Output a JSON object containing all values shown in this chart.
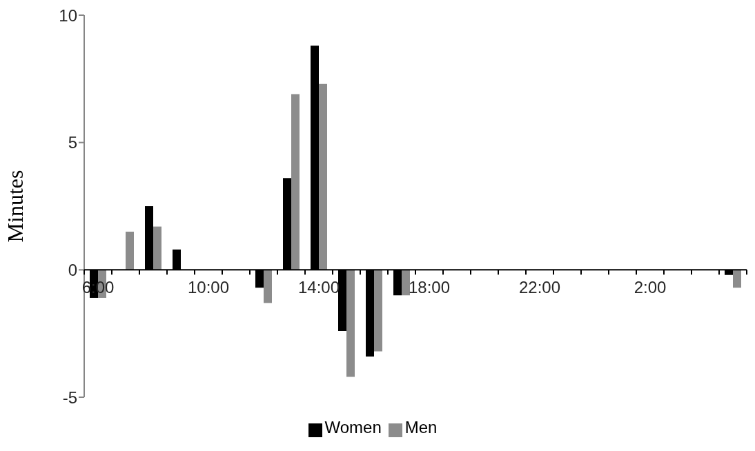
{
  "chart_data": {
    "type": "bar",
    "ylabel": "Minutes",
    "categories": [
      "6:00",
      null,
      null,
      null,
      "10:00",
      null,
      null,
      null,
      "14:00",
      null,
      null,
      null,
      "18:00",
      null,
      null,
      null,
      "22:00",
      null,
      null,
      null,
      "2:00",
      null,
      null,
      null
    ],
    "series": [
      {
        "name": "Women",
        "color": "#000000",
        "values": [
          -1.1,
          0,
          2.5,
          0.8,
          0,
          0,
          -0.7,
          3.6,
          8.8,
          -2.4,
          -3.4,
          -1.0,
          0,
          0,
          0,
          0,
          0,
          0,
          0,
          0,
          0,
          0,
          0,
          -0.2
        ]
      },
      {
        "name": "Men",
        "color": "#8c8c8c",
        "values": [
          -1.1,
          1.5,
          1.7,
          0,
          0,
          0,
          -1.3,
          6.9,
          7.3,
          -4.2,
          -3.2,
          -1.0,
          0,
          0,
          0,
          0,
          0,
          0,
          0,
          0,
          0,
          0,
          0,
          -0.7
        ]
      }
    ],
    "ylim": [
      -5,
      10
    ],
    "yticks": [
      -5,
      0,
      5,
      10
    ],
    "grid": false,
    "legend": "bottom"
  }
}
